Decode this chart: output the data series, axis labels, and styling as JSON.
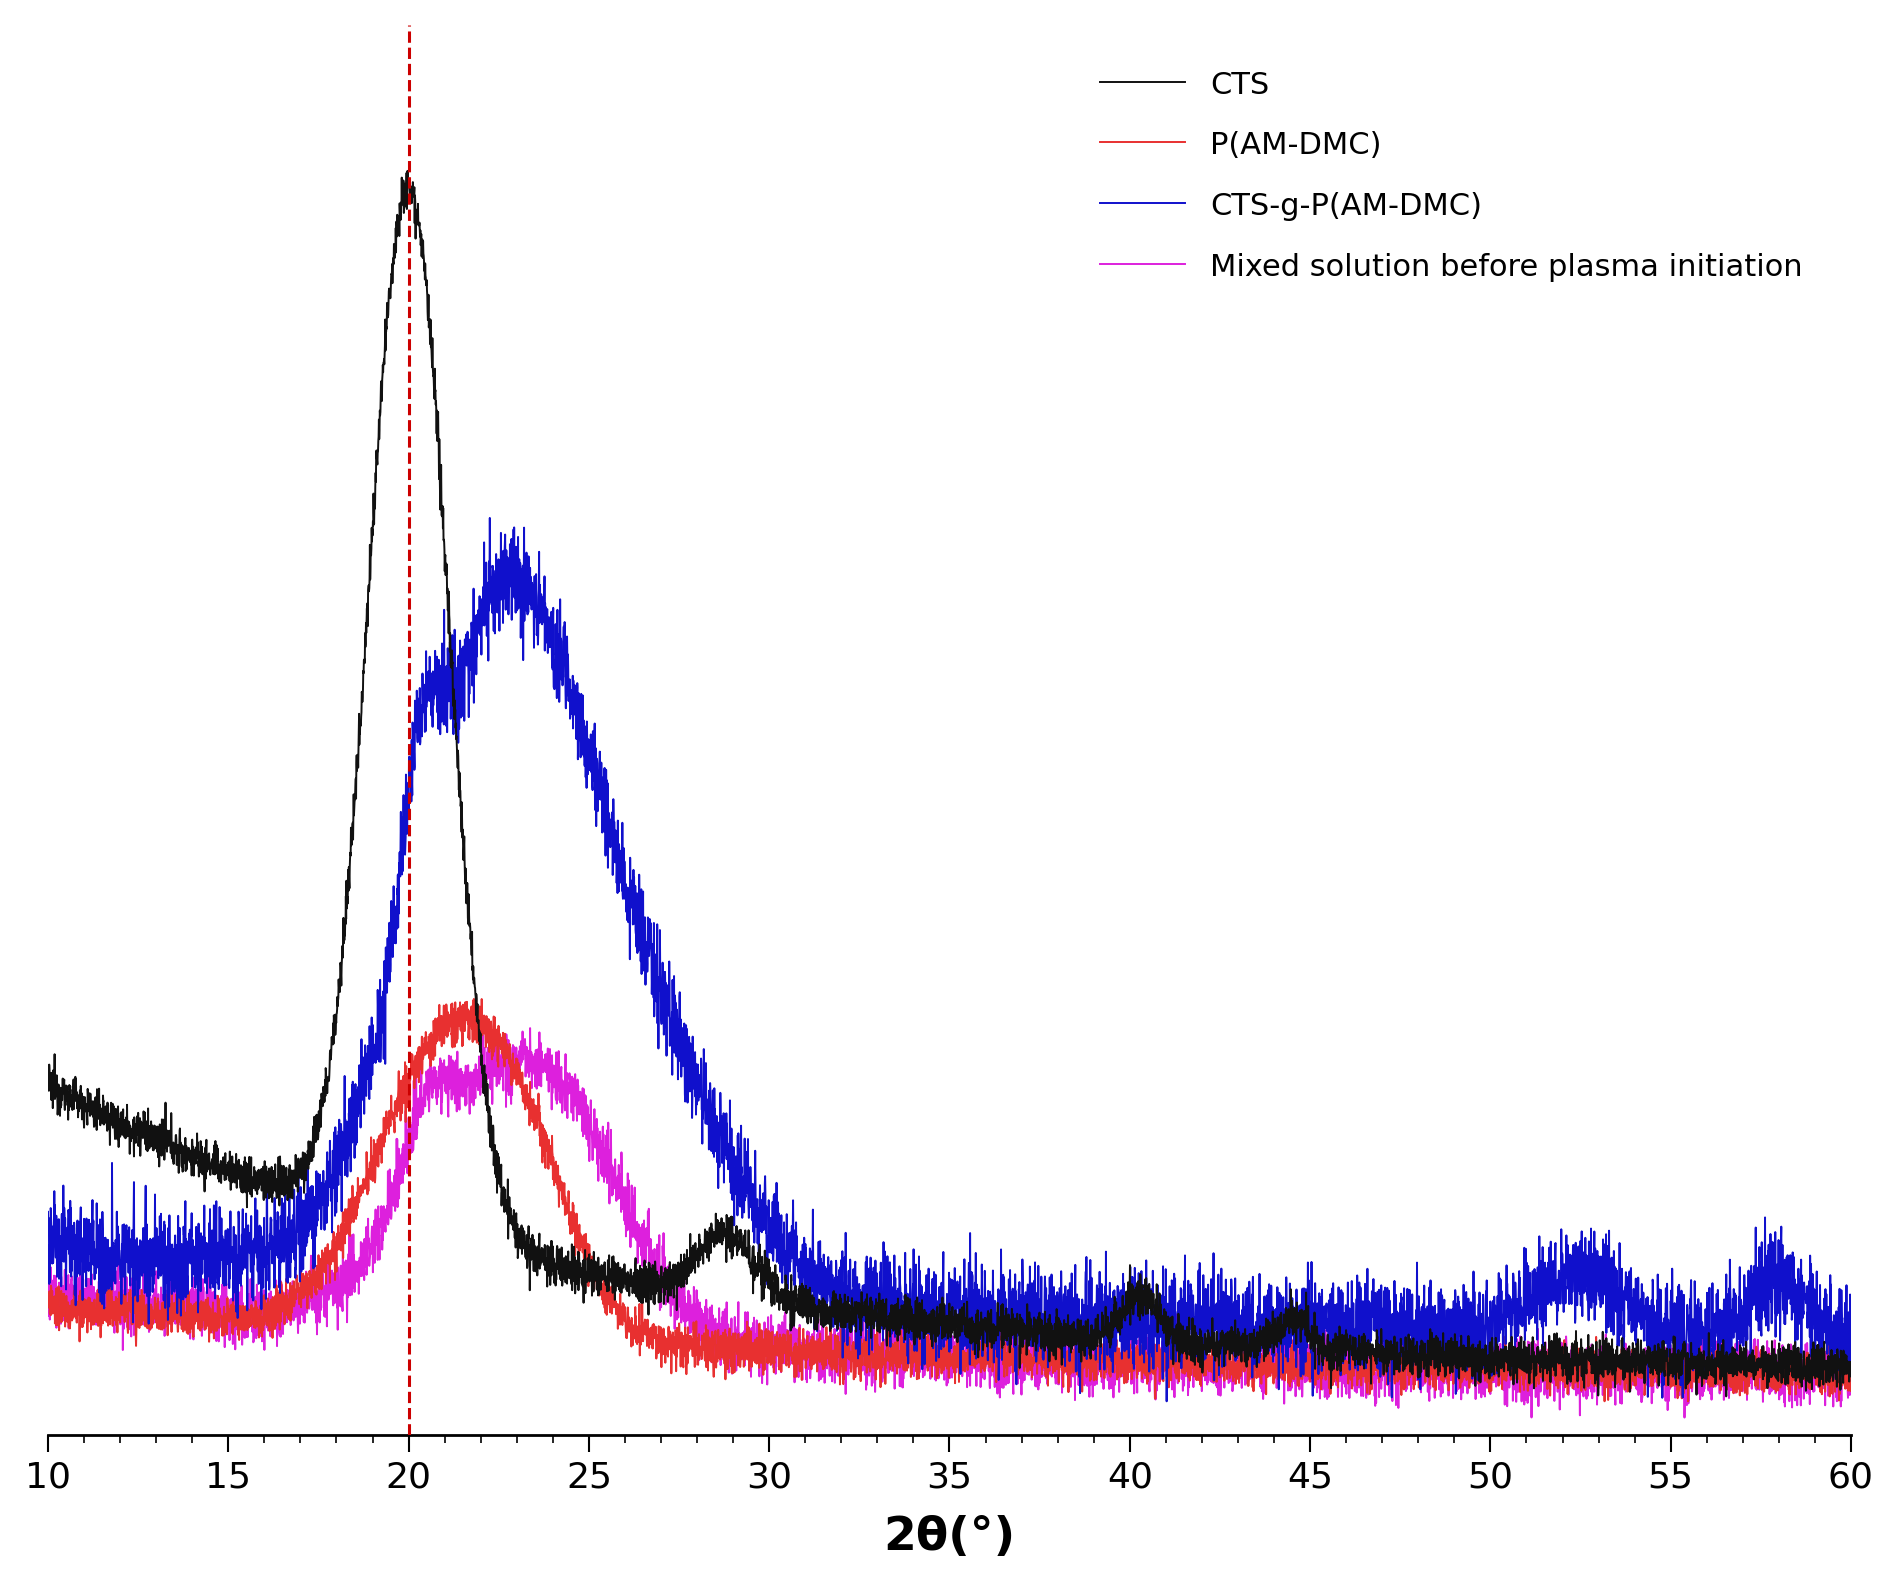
{
  "x_min": 10,
  "x_max": 60,
  "x_major_ticks": [
    10,
    15,
    20,
    25,
    30,
    35,
    40,
    45,
    50,
    55,
    60
  ],
  "xlabel": "2θ(°)",
  "xlabel_fontsize": 34,
  "xlabel_bold": true,
  "tick_fontsize": 26,
  "legend_fontsize": 22,
  "dashed_line_x": 20,
  "dashed_color": "#cc0000",
  "background_color": "#ffffff",
  "figsize": [
    18.99,
    15.85
  ],
  "dpi": 100,
  "series": {
    "CTS": {
      "color": "#111111",
      "lw": 1.4
    },
    "P(AM-DMC)": {
      "color": "#e83030",
      "lw": 1.4
    },
    "CTS-g-P(AM-DMC)": {
      "color": "#1010cc",
      "lw": 1.4
    },
    "Mixed solution before plasma initiation": {
      "color": "#dd20dd",
      "lw": 1.4
    }
  }
}
